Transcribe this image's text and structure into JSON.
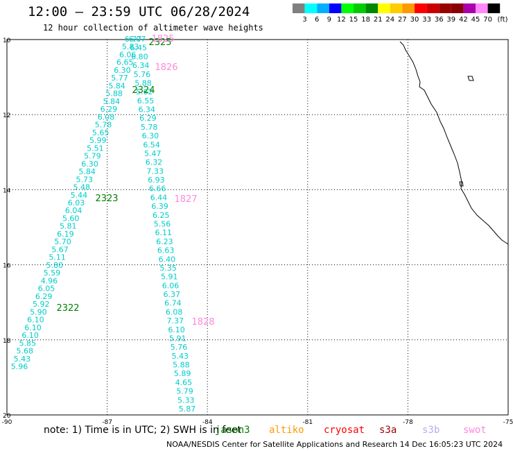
{
  "header": {
    "title": "12:00 – 23:59 UTC 06/28/2024",
    "subtitle": "12 hour collection of altimeter wave heights"
  },
  "legend": {
    "colors": [
      "#808080",
      "#00ffff",
      "#00b0ff",
      "#0000ff",
      "#00ff00",
      "#00cc00",
      "#008800",
      "#ffff00",
      "#ffcc00",
      "#ff9900",
      "#ff0000",
      "#cc0000",
      "#990000",
      "#880000",
      "#aa00aa",
      "#ff88ff",
      "#000000"
    ],
    "labels": [
      "3",
      "6",
      "9",
      "12",
      "15",
      "18",
      "21",
      "24",
      "27",
      "30",
      "33",
      "36",
      "39",
      "42",
      "45",
      "70"
    ],
    "unit": "(ft)"
  },
  "map": {
    "lat_labels": [
      "10",
      "12",
      "14",
      "16",
      "18",
      "20"
    ],
    "lon_labels": [
      "-90",
      "-87",
      "-84",
      "-81",
      "-78",
      "-75"
    ],
    "tracks": [
      {
        "time_label": "2322",
        "time_color": "#008000",
        "values": [
          "6.77",
          "6.07",
          "5.83",
          "6.45",
          "6.06",
          "6.80",
          "6.65",
          "6.34",
          "6.30",
          "5.76",
          "5.77",
          "5.88",
          "5.84",
          "5.62",
          "5.88",
          "6.55",
          "5.84",
          "6.34",
          "6.29",
          "6.29",
          "6.08",
          "5.78",
          "5.78",
          "6.30",
          "5.65",
          "6.54",
          "5.99",
          "5.47",
          "5.51",
          "6.32",
          "5.79",
          "7.33",
          "6.30",
          "6.93",
          "5.84",
          "6.66",
          "5.73",
          "6.44",
          "5.48",
          "6.39",
          "5.44",
          "6.25",
          "6.03",
          "5.56",
          "6.04",
          "6.11",
          "5.60",
          "6.23",
          "5.81",
          "6.63",
          "6.19",
          "6.40",
          "5.70",
          "5.35",
          "5.67",
          "5.91",
          "5.11",
          "6.06",
          "5.80",
          "6.37",
          "5.59",
          "6.74",
          "4.96",
          "6.08",
          "6.05",
          "7.37",
          "6.29",
          "6.10",
          "5.92",
          "5.91",
          "5.90",
          "5.76",
          "6.10",
          "5.43",
          "6.10",
          "5.88",
          "6.10",
          "5.89",
          "5.85",
          "4.65",
          "5.68",
          "5.79",
          "5.43",
          "5.33",
          "5.96",
          "5.87"
        ]
      },
      {
        "time_label": "2323",
        "time_color": "#008000",
        "values": []
      },
      {
        "time_label": "2324",
        "time_color": "#008000",
        "values": []
      },
      {
        "time_label": "2325",
        "time_color": "#008000",
        "values": []
      }
    ],
    "swot_labels": [
      "1825",
      "1826",
      "1827",
      "1828"
    ],
    "swot_color": "#ff88dd",
    "value_color": "#00cccc"
  },
  "footer": {
    "note": "note: 1) Time is in UTC; 2) SWH is in feet",
    "missions": [
      {
        "name": "jason3",
        "color": "#008000"
      },
      {
        "name": "altiko",
        "color": "#ff9900"
      },
      {
        "name": "cryosat",
        "color": "#ff0000"
      },
      {
        "name": "s3a",
        "color": "#990000"
      },
      {
        "name": "s3b",
        "color": "#bbaaee"
      },
      {
        "name": "swot",
        "color": "#ff88dd"
      }
    ],
    "credit": "NOAA/NESDIS Center for Satellite Applications and Research    14 Dec 16:05:23 UTC 2024"
  }
}
